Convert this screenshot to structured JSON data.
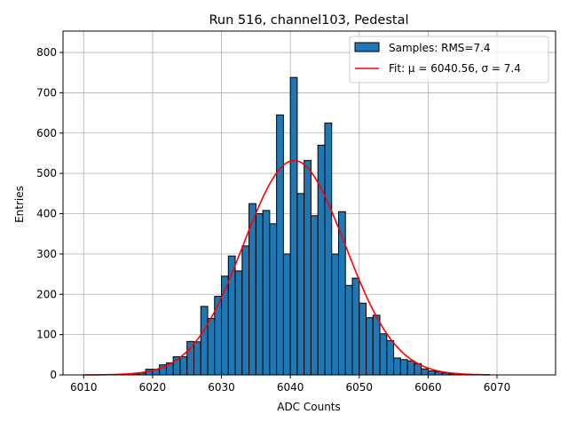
{
  "chart_data": {
    "type": "bar",
    "title": "Run 516, channel103, Pedestal",
    "xlabel": "ADC Counts",
    "ylabel": "Entries",
    "xlim": [
      6007,
      6078.5
    ],
    "ylim": [
      0,
      853
    ],
    "xticks": [
      6010,
      6020,
      6030,
      6040,
      6050,
      6060,
      6070
    ],
    "yticks": [
      0,
      100,
      200,
      300,
      400,
      500,
      600,
      700,
      800
    ],
    "grid": true,
    "legend_position": "top-right",
    "bin_width": 1,
    "bins": [
      6017,
      6018,
      6019,
      6020,
      6021,
      6022,
      6023,
      6024,
      6025,
      6026,
      6027,
      6028,
      6029,
      6030,
      6031,
      6032,
      6033,
      6034,
      6035,
      6036,
      6037,
      6038,
      6039,
      6040,
      6041,
      6042,
      6043,
      6044,
      6045,
      6046,
      6047,
      6048,
      6049,
      6050,
      6051,
      6052,
      6053,
      6054,
      6055,
      6056,
      6057,
      6058,
      6059,
      6060,
      6061,
      6062,
      6063,
      6064
    ],
    "values": [
      2,
      5,
      14,
      14,
      25,
      30,
      45,
      45,
      83,
      82,
      170,
      140,
      195,
      245,
      295,
      258,
      320,
      425,
      400,
      408,
      375,
      645,
      300,
      738,
      450,
      532,
      395,
      570,
      625,
      300,
      405,
      222,
      240,
      178,
      142,
      148,
      102,
      85,
      42,
      38,
      35,
      28,
      15,
      10,
      8,
      5,
      3,
      2
    ],
    "series": [
      {
        "name": "Samples: RMS=7.4",
        "type": "bar",
        "color": "#1f77b4"
      },
      {
        "name": "Fit: μ = 6040.56, σ = 7.4",
        "type": "line",
        "color": "#ff0000",
        "mu": 6040.56,
        "sigma": 7.4,
        "amplitude": 532,
        "range": [
          6010,
          6069
        ]
      }
    ]
  }
}
